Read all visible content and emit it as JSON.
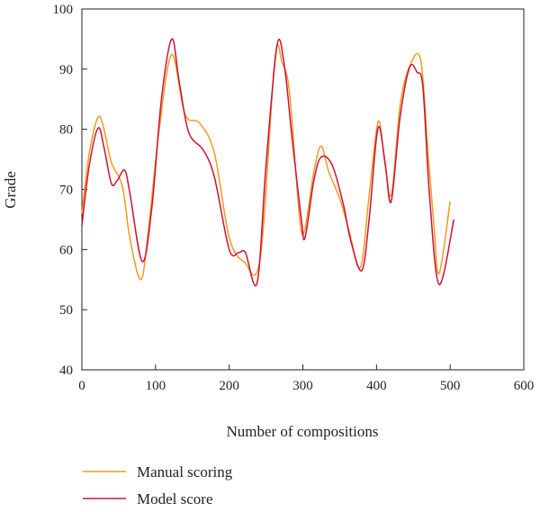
{
  "chart_data": {
    "type": "line",
    "title": "",
    "xlabel": "Number of compositions",
    "ylabel": "Grade",
    "xlim": [
      0,
      600
    ],
    "ylim": [
      40,
      100
    ],
    "xticks": [
      0,
      100,
      200,
      300,
      400,
      500,
      600
    ],
    "yticks": [
      40,
      50,
      60,
      70,
      80,
      90,
      100
    ],
    "grid": false,
    "legend_position": "bottom-left",
    "series": [
      {
        "name": "Manual scoring",
        "color": "#f39a1e",
        "x": [
          0,
          10,
          22,
          30,
          40,
          55,
          65,
          80,
          90,
          105,
          122,
          140,
          160,
          180,
          200,
          220,
          242,
          262,
          272,
          282,
          295,
          302,
          315,
          325,
          335,
          350,
          362,
          378,
          390,
          402,
          410,
          420,
          432,
          445,
          460,
          470,
          478,
          485,
          500
        ],
        "y": [
          66,
          76,
          82,
          80,
          74.5,
          70.5,
          62,
          55,
          63,
          80,
          92.4,
          82.5,
          81,
          76,
          62,
          58,
          58.5,
          91.5,
          91,
          86,
          66,
          63,
          73,
          77.2,
          73,
          68.5,
          63.5,
          57,
          69,
          81.2,
          76,
          69,
          84,
          90.5,
          91.5,
          76,
          64,
          56,
          68
        ]
      },
      {
        "name": "Model score",
        "color": "#d0103a",
        "x": [
          0,
          10,
          22,
          30,
          40,
          48,
          58,
          65,
          82,
          95,
          108,
          122,
          132,
          145,
          165,
          180,
          200,
          213,
          222,
          238,
          250,
          265,
          275,
          285,
          298,
          303,
          315,
          325,
          340,
          355,
          365,
          380,
          390,
          402,
          412,
          420,
          432,
          445,
          455,
          463,
          472,
          485,
          505
        ],
        "y": [
          64,
          74,
          80.2,
          77,
          71,
          71.5,
          73.2,
          69.5,
          58,
          67,
          85,
          95,
          88,
          79.5,
          76.5,
          72,
          60,
          59.5,
          59.5,
          54.5,
          74,
          94,
          90.5,
          79,
          65,
          62,
          71.5,
          75.4,
          74,
          67.5,
          61.5,
          56.5,
          65,
          80.2,
          74,
          68,
          82,
          90.3,
          89.5,
          87,
          69,
          54.2,
          65
        ]
      }
    ]
  }
}
